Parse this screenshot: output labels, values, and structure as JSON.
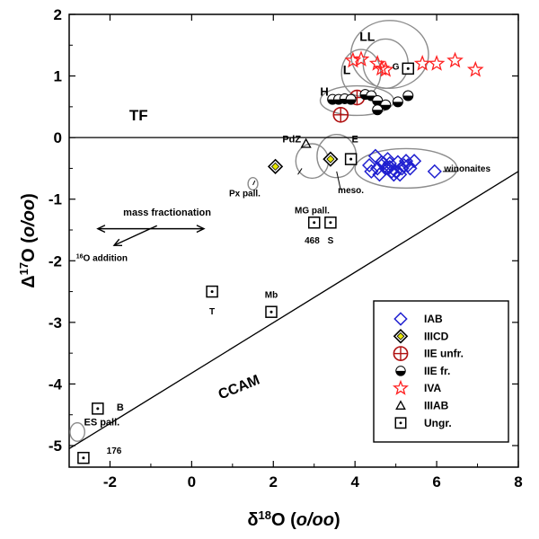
{
  "chart_data": {
    "type": "scatter",
    "xlabel": "δ18O (o/oo)",
    "ylabel": "Δ17O (o/oo)",
    "xlim": [
      -3,
      8
    ],
    "ylim": [
      -5.35,
      2
    ],
    "xticks": [
      -2,
      0,
      2,
      4,
      6,
      8
    ],
    "yticks": [
      -5,
      -4,
      -3,
      -2,
      -1,
      0,
      1,
      2
    ],
    "grid": false,
    "legend_position": "bottom-right",
    "reference_lines": [
      {
        "name": "TF",
        "points": [
          [
            -3,
            0
          ],
          [
            8,
            0
          ]
        ]
      },
      {
        "name": "CCAM",
        "points": [
          [
            -3,
            -5.05
          ],
          [
            8,
            -0.55
          ]
        ]
      }
    ],
    "series": [
      {
        "name": "IAB",
        "marker": "diamond",
        "color": "#1f1fd0",
        "x": [
          4.35,
          4.55,
          4.7,
          4.8,
          4.9,
          5.05,
          5.15,
          5.3,
          5.45,
          4.4,
          4.6,
          4.75,
          4.85,
          5.0,
          5.2,
          5.35,
          4.5,
          4.8,
          4.95,
          5.1,
          4.65,
          5.25,
          4.85,
          5.95
        ],
        "y": [
          -0.45,
          -0.5,
          -0.42,
          -0.5,
          -0.55,
          -0.4,
          -0.5,
          -0.45,
          -0.38,
          -0.55,
          -0.6,
          -0.5,
          -0.42,
          -0.55,
          -0.45,
          -0.5,
          -0.3,
          -0.35,
          -0.6,
          -0.6,
          -0.4,
          -0.38,
          -0.48,
          -0.55
        ]
      },
      {
        "name": "IIICD",
        "marker": "diamond-filled",
        "color": "#e8e800",
        "x": [
          2.05,
          3.4
        ],
        "y": [
          -0.47,
          -0.35
        ]
      },
      {
        "name": "IIE unfr.",
        "marker": "circle-cross",
        "color": "#b01010",
        "x": [
          3.65,
          4.05
        ],
        "y": [
          0.37,
          0.65
        ]
      },
      {
        "name": "IIE fr.",
        "marker": "half-circle",
        "color": "#000000",
        "x": [
          3.45,
          3.6,
          3.75,
          3.9,
          4.25,
          4.4,
          4.55,
          4.75,
          5.05,
          5.3,
          4.55
        ],
        "y": [
          0.62,
          0.62,
          0.63,
          0.62,
          0.7,
          0.68,
          0.6,
          0.53,
          0.58,
          0.68,
          0.45
        ]
      },
      {
        "name": "IVA",
        "marker": "star",
        "color": "#ff2020",
        "x": [
          3.95,
          4.15,
          4.55,
          4.75,
          5.65,
          6.0,
          6.45,
          6.95,
          4.65
        ],
        "y": [
          1.25,
          1.27,
          1.2,
          1.1,
          1.2,
          1.2,
          1.25,
          1.1,
          1.12
        ]
      },
      {
        "name": "IIIAB",
        "marker": "triangle",
        "color": "#000000",
        "x": [
          2.8
        ],
        "y": [
          -0.1
        ]
      },
      {
        "name": "Ungr.",
        "marker": "square-dot",
        "color": "#000000",
        "x": [
          5.3,
          3.9,
          3.0,
          3.4,
          0.5,
          1.95,
          -2.3,
          -2.65
        ],
        "y": [
          1.12,
          -0.35,
          -1.38,
          -1.38,
          -2.5,
          -2.83,
          -4.4,
          -5.2
        ]
      }
    ],
    "outline_ellipses": [
      {
        "x": -2.8,
        "y": -4.78,
        "rx": 0.18,
        "ry": 0.15
      },
      {
        "x": 1.5,
        "y": -0.75,
        "rx": 0.12,
        "ry": 0.1
      },
      {
        "x": 2.95,
        "y": -0.38,
        "rx": 0.4,
        "ry": 0.28
      },
      {
        "x": 3.55,
        "y": -0.3,
        "rx": 0.48,
        "ry": 0.35
      },
      {
        "x": 4.05,
        "y": 0.6,
        "rx": 0.9,
        "ry": 0.24
      },
      {
        "x": 4.15,
        "y": 1.05,
        "rx": 0.48,
        "ry": 0.38
      },
      {
        "x": 4.75,
        "y": 1.2,
        "rx": 0.55,
        "ry": 0.4
      },
      {
        "x": 4.85,
        "y": 1.35,
        "rx": 0.95,
        "ry": 0.55
      },
      {
        "x": 5.25,
        "y": -0.5,
        "rx": 1.25,
        "ry": 0.32
      }
    ],
    "annotations": [
      {
        "text": "TF",
        "x": -1.3,
        "y": 0.28,
        "size": 17
      },
      {
        "text": "CCAM",
        "x": 1.2,
        "y": -4.12,
        "size": 16,
        "rotate": -22
      },
      {
        "text": "LL",
        "x": 4.3,
        "y": 1.57,
        "size": 14
      },
      {
        "text": "L",
        "x": 3.8,
        "y": 1.03,
        "size": 14
      },
      {
        "text": "H",
        "x": 3.25,
        "y": 0.68,
        "size": 13
      },
      {
        "text": "G",
        "x": 5.0,
        "y": 1.1,
        "size": 10
      },
      {
        "text": "PdZ",
        "x": 2.45,
        "y": -0.08,
        "size": 11
      },
      {
        "text": "E",
        "x": 4.0,
        "y": -0.08,
        "size": 11
      },
      {
        "text": "Px pall.",
        "x": 1.3,
        "y": -0.95,
        "size": 10
      },
      {
        "text": "MG pall.",
        "x": 2.95,
        "y": -1.23,
        "size": 10
      },
      {
        "text": "meso.",
        "x": 3.9,
        "y": -0.9,
        "size": 10
      },
      {
        "text": "winonaites",
        "x": 6.75,
        "y": -0.55,
        "size": 10
      },
      {
        "text": "mass fractionation",
        "x": -0.6,
        "y": -1.27,
        "size": 11
      },
      {
        "text": "16O addition",
        "x": -2.2,
        "y": -2.0,
        "size": 10
      },
      {
        "text": "468",
        "x": 2.95,
        "y": -1.72,
        "size": 10
      },
      {
        "text": "S",
        "x": 3.4,
        "y": -1.72,
        "size": 10
      },
      {
        "text": "T",
        "x": 0.5,
        "y": -2.87,
        "size": 10
      },
      {
        "text": "Mb",
        "x": 1.95,
        "y": -2.6,
        "size": 10
      },
      {
        "text": "B",
        "x": -1.75,
        "y": -4.43,
        "size": 11
      },
      {
        "text": "ES pall.",
        "x": -2.2,
        "y": -4.67,
        "size": 11
      },
      {
        "text": "176",
        "x": -1.9,
        "y": -5.13,
        "size": 10
      }
    ],
    "leaders": [
      {
        "from": [
          1.55,
          -0.7
        ],
        "to": [
          1.5,
          -0.77
        ]
      },
      {
        "from": [
          2.6,
          -0.6
        ],
        "to": [
          2.7,
          -0.5
        ]
      },
      {
        "from": [
          3.65,
          -0.85
        ],
        "to": [
          3.55,
          -0.55
        ]
      },
      {
        "from": [
          6.15,
          -0.55
        ],
        "to": [
          6.5,
          -0.55
        ]
      }
    ],
    "arrows": [
      {
        "from": [
          -1.0,
          -1.48
        ],
        "to": [
          -2.3,
          -1.48
        ]
      },
      {
        "from": [
          -1.0,
          -1.48
        ],
        "to": [
          0.3,
          -1.48
        ]
      },
      {
        "from": [
          -0.85,
          -1.43
        ],
        "to": [
          -1.9,
          -1.75
        ]
      }
    ]
  }
}
